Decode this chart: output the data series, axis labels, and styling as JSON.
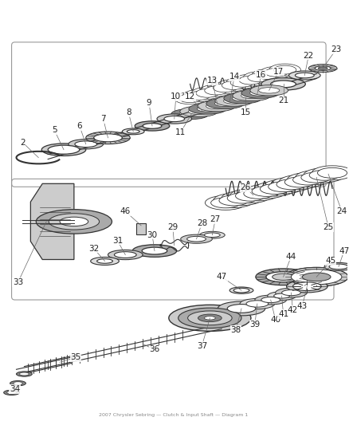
{
  "bg_color": "#ffffff",
  "line_color": "#333333",
  "dark_color": "#222222",
  "gray1": "#888888",
  "gray2": "#aaaaaa",
  "gray3": "#cccccc",
  "gray4": "#dddddd",
  "fig_width": 4.39,
  "fig_height": 5.33,
  "dpi": 100,
  "label_fs": 7.5,
  "title_text": "2007 Chrysler Sebring\nClutch & Input Shaft\nDiagram 1"
}
